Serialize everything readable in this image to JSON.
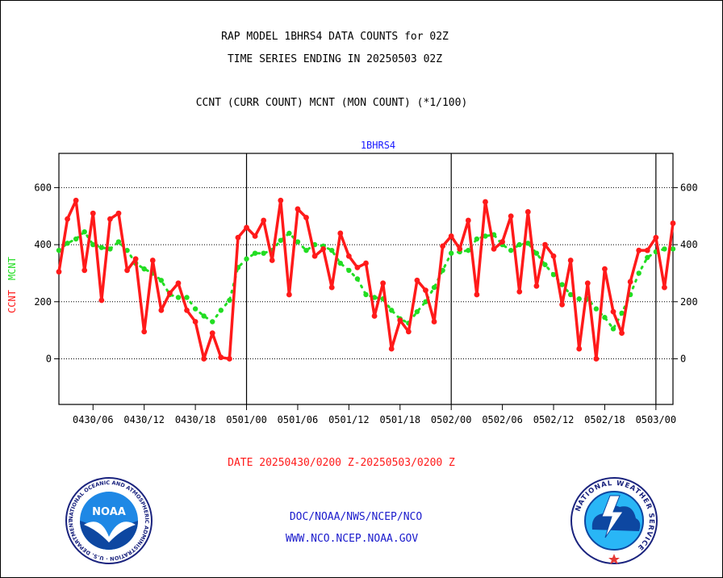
{
  "header": {
    "line1": "RAP MODEL 1BHRS4 DATA COUNTS for 02Z",
    "line2": "TIME SERIES ENDING IN 20250503 02Z",
    "line3": "CCNT (CURR COUNT) MCNT (MON COUNT) (*1/100)"
  },
  "date_range": "DATE 20250430/0200 Z-20250503/0200 Z",
  "footer": {
    "line1": "DOC/NOAA/NWS/NCEP/NCO",
    "line2": "WWW.NCO.NCEP.NOAA.GOV"
  },
  "colors": {
    "ccnt": "#ff1a1a",
    "mcnt": "#22dd22",
    "axis_title": "#1a1aff",
    "footer_text": "#1a1acc",
    "date_text": "#ff1a1a"
  },
  "logos": {
    "left": {
      "icon": "noaa-logo",
      "text": "NOAA",
      "ring_text": "NATIONAL OCEANIC AND ATMOSPHERIC ADMINISTRATION · U.S. DEPARTMENT OF COMMERCE"
    },
    "right": {
      "icon": "nws-logo",
      "ring_text": "NATIONAL WEATHER SERVICE"
    }
  },
  "chart_data": {
    "type": "line",
    "title": "1BHRS4",
    "ylabel_series": [
      "CCNT",
      "MCNT"
    ],
    "ylim": [
      -160,
      720
    ],
    "yticks": [
      0,
      200,
      400,
      600
    ],
    "grid": true,
    "x_range_hours": [
      0,
      72
    ],
    "xticks": [
      {
        "h": 4,
        "label": "0430/06"
      },
      {
        "h": 10,
        "label": "0430/12"
      },
      {
        "h": 16,
        "label": "0430/18"
      },
      {
        "h": 22,
        "label": "0501/00"
      },
      {
        "h": 28,
        "label": "0501/06"
      },
      {
        "h": 34,
        "label": "0501/12"
      },
      {
        "h": 40,
        "label": "0501/18"
      },
      {
        "h": 46,
        "label": "0502/00"
      },
      {
        "h": 52,
        "label": "0502/06"
      },
      {
        "h": 58,
        "label": "0502/12"
      },
      {
        "h": 64,
        "label": "0502/18"
      },
      {
        "h": 70,
        "label": "0503/00"
      }
    ],
    "day_boundaries_h": [
      22,
      46,
      70
    ],
    "series": [
      {
        "name": "CCNT",
        "values": [
          305,
          490,
          555,
          310,
          510,
          205,
          490,
          510,
          310,
          350,
          95,
          345,
          170,
          230,
          265,
          170,
          130,
          0,
          90,
          5,
          0,
          425,
          460,
          430,
          485,
          345,
          555,
          225,
          525,
          495,
          360,
          385,
          250,
          440,
          360,
          320,
          335,
          150,
          265,
          35,
          135,
          95,
          275,
          240,
          130,
          395,
          430,
          385,
          485,
          225,
          550,
          385,
          410,
          500,
          235,
          515,
          255,
          400,
          360,
          190,
          345,
          35,
          265,
          0,
          315,
          165,
          90,
          270,
          380,
          380,
          425,
          250,
          475
        ]
      },
      {
        "name": "MCNT",
        "values": [
          380,
          405,
          420,
          445,
          400,
          390,
          385,
          410,
          380,
          335,
          315,
          300,
          275,
          225,
          215,
          215,
          175,
          150,
          130,
          170,
          205,
          320,
          350,
          370,
          370,
          380,
          415,
          440,
          410,
          380,
          400,
          395,
          380,
          335,
          310,
          280,
          225,
          215,
          210,
          170,
          140,
          125,
          165,
          200,
          250,
          310,
          370,
          375,
          380,
          420,
          430,
          435,
          400,
          380,
          400,
          405,
          370,
          330,
          295,
          260,
          225,
          210,
          210,
          175,
          145,
          105,
          160,
          225,
          300,
          355,
          375,
          385,
          385
        ]
      }
    ]
  }
}
